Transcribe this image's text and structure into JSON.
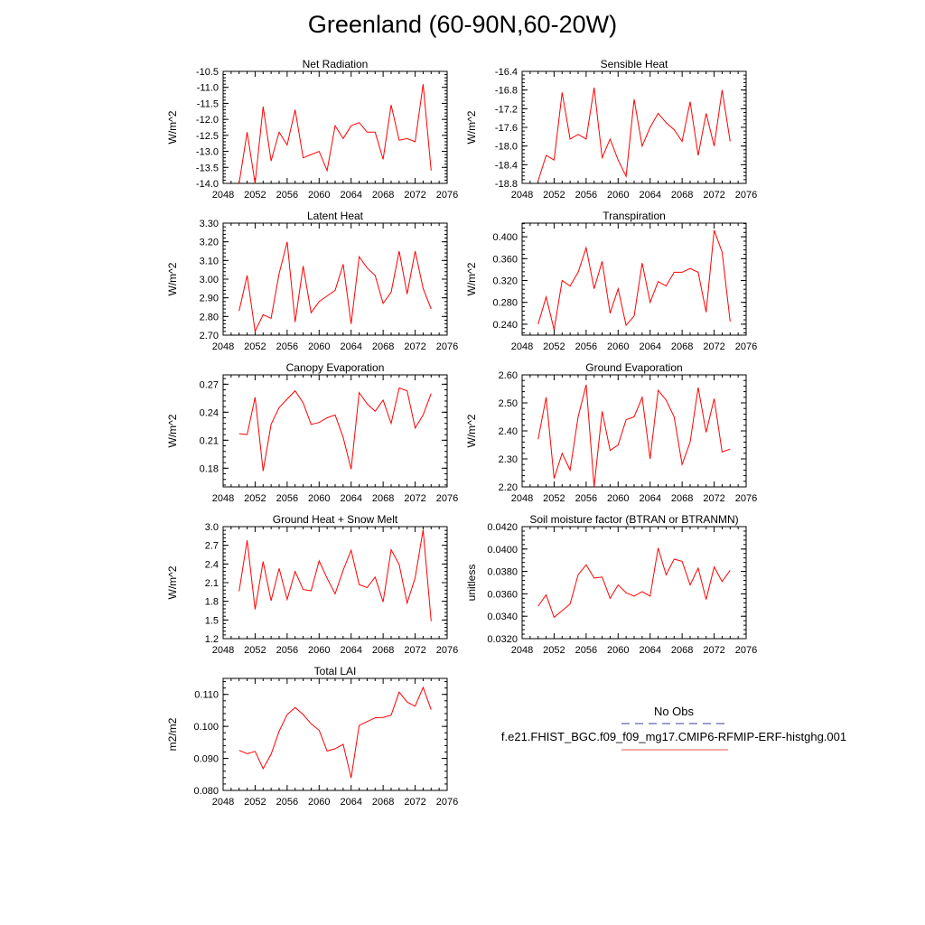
{
  "title": "Greenland (60-90N,60-20W)",
  "legend": {
    "entries": [
      {
        "label": "No Obs",
        "color": "#3b3b9b",
        "style": "dashed"
      },
      {
        "label": "f.e21.FHIST_BGC.f09_f09_mg17.CMIP6-RFMIP-ERF-histghg.001",
        "color": "#e8544e",
        "style": "solid"
      }
    ]
  },
  "chart_data": [
    {
      "type": "line",
      "title": "Net Radiation",
      "ylabel": "W/m^2",
      "xlim": [
        2048,
        2076
      ],
      "xticks": [
        2048,
        2052,
        2056,
        2060,
        2064,
        2068,
        2072,
        2076
      ],
      "ylim": [
        -14.0,
        -10.5
      ],
      "yticks": [
        -14.0,
        -13.5,
        -13.0,
        -12.5,
        -12.0,
        -11.5,
        -11.0,
        -10.5
      ],
      "ytick_labels": [
        "-14.0",
        "-13.5",
        "-13.0",
        "-12.5",
        "-12.0",
        "-11.5",
        "-11.0",
        "-10.5"
      ],
      "series": [
        {
          "color": "#ff0000",
          "x": [
            2050,
            2051,
            2052,
            2053,
            2054,
            2055,
            2056,
            2057,
            2058,
            2059,
            2060,
            2061,
            2062,
            2063,
            2064,
            2065,
            2066,
            2067,
            2068,
            2069,
            2070,
            2071,
            2072,
            2073,
            2074
          ],
          "y": [
            -14.0,
            -12.4,
            -14.0,
            -11.6,
            -13.3,
            -12.4,
            -12.8,
            -11.7,
            -13.2,
            -13.1,
            -13.0,
            -13.6,
            -12.2,
            -12.6,
            -12.2,
            -12.1,
            -12.4,
            -12.4,
            -13.25,
            -11.55,
            -12.65,
            -12.6,
            -12.7,
            -10.9,
            -13.6
          ]
        }
      ]
    },
    {
      "type": "line",
      "title": "Sensible Heat",
      "ylabel": "W/m^2",
      "xlim": [
        2048,
        2076
      ],
      "xticks": [
        2048,
        2052,
        2056,
        2060,
        2064,
        2068,
        2072,
        2076
      ],
      "ylim": [
        -18.8,
        -16.4
      ],
      "yticks": [
        -18.8,
        -18.4,
        -18.0,
        -17.6,
        -17.2,
        -16.8,
        -16.4
      ],
      "ytick_labels": [
        "-18.8",
        "-18.4",
        "-18.0",
        "-17.6",
        "-17.2",
        "-16.8",
        "-16.4"
      ],
      "series": [
        {
          "color": "#ff0000",
          "x": [
            2050,
            2051,
            2052,
            2053,
            2054,
            2055,
            2056,
            2057,
            2058,
            2059,
            2060,
            2061,
            2062,
            2063,
            2064,
            2065,
            2066,
            2067,
            2068,
            2069,
            2070,
            2071,
            2072,
            2073,
            2074
          ],
          "y": [
            -18.75,
            -18.2,
            -18.3,
            -16.85,
            -17.85,
            -17.75,
            -17.85,
            -16.75,
            -18.25,
            -17.85,
            -18.3,
            -18.65,
            -17.0,
            -18.0,
            -17.6,
            -17.3,
            -17.5,
            -17.65,
            -17.9,
            -17.05,
            -18.2,
            -17.3,
            -18.0,
            -16.8,
            -17.9
          ]
        }
      ]
    },
    {
      "type": "line",
      "title": "Latent Heat",
      "ylabel": "W/m^2",
      "xlim": [
        2048,
        2076
      ],
      "xticks": [
        2048,
        2052,
        2056,
        2060,
        2064,
        2068,
        2072,
        2076
      ],
      "ylim": [
        2.7,
        3.3
      ],
      "yticks": [
        2.7,
        2.8,
        2.9,
        3.0,
        3.1,
        3.2,
        3.3
      ],
      "ytick_labels": [
        "2.70",
        "2.80",
        "2.90",
        "3.00",
        "3.10",
        "3.20",
        "3.30"
      ],
      "series": [
        {
          "color": "#ff0000",
          "x": [
            2050,
            2051,
            2052,
            2053,
            2054,
            2055,
            2056,
            2057,
            2058,
            2059,
            2060,
            2061,
            2062,
            2063,
            2064,
            2065,
            2066,
            2067,
            2068,
            2069,
            2070,
            2071,
            2072,
            2073,
            2074
          ],
          "y": [
            2.83,
            3.02,
            2.72,
            2.81,
            2.79,
            3.03,
            3.2,
            2.77,
            3.07,
            2.82,
            2.88,
            2.91,
            2.94,
            3.08,
            2.76,
            3.12,
            3.06,
            3.02,
            2.87,
            2.93,
            3.15,
            2.92,
            3.15,
            2.95,
            2.84
          ]
        }
      ]
    },
    {
      "type": "line",
      "title": "Transpiration",
      "ylabel": "W/m^2",
      "xlim": [
        2048,
        2076
      ],
      "xticks": [
        2048,
        2052,
        2056,
        2060,
        2064,
        2068,
        2072,
        2076
      ],
      "ylim": [
        0.22,
        0.425
      ],
      "yticks": [
        0.24,
        0.28,
        0.32,
        0.36,
        0.4
      ],
      "ytick_labels": [
        "0.240",
        "0.280",
        "0.320",
        "0.360",
        "0.400"
      ],
      "series": [
        {
          "color": "#ff0000",
          "x": [
            2050,
            2051,
            2052,
            2053,
            2054,
            2055,
            2056,
            2057,
            2058,
            2059,
            2060,
            2061,
            2062,
            2063,
            2064,
            2065,
            2066,
            2067,
            2068,
            2069,
            2070,
            2071,
            2072,
            2073,
            2074
          ],
          "y": [
            0.24,
            0.29,
            0.23,
            0.32,
            0.31,
            0.335,
            0.38,
            0.305,
            0.355,
            0.26,
            0.305,
            0.238,
            0.255,
            0.352,
            0.28,
            0.318,
            0.31,
            0.335,
            0.335,
            0.342,
            0.335,
            0.262,
            0.412,
            0.372,
            0.245
          ]
        }
      ]
    },
    {
      "type": "line",
      "title": "Canopy Evaporation",
      "ylabel": "W/m^2",
      "xlim": [
        2048,
        2076
      ],
      "xticks": [
        2048,
        2052,
        2056,
        2060,
        2064,
        2068,
        2072,
        2076
      ],
      "ylim": [
        0.16,
        0.28
      ],
      "yticks": [
        0.18,
        0.21,
        0.24,
        0.27
      ],
      "ytick_labels": [
        "0.18",
        "0.21",
        "0.24",
        "0.27"
      ],
      "series": [
        {
          "color": "#ff0000",
          "x": [
            2050,
            2051,
            2052,
            2053,
            2054,
            2055,
            2056,
            2057,
            2058,
            2059,
            2060,
            2061,
            2062,
            2063,
            2064,
            2065,
            2066,
            2067,
            2068,
            2069,
            2070,
            2071,
            2072,
            2073,
            2074
          ],
          "y": [
            0.217,
            0.216,
            0.256,
            0.177,
            0.227,
            0.245,
            0.254,
            0.263,
            0.25,
            0.227,
            0.229,
            0.234,
            0.237,
            0.213,
            0.179,
            0.261,
            0.249,
            0.241,
            0.253,
            0.228,
            0.266,
            0.263,
            0.223,
            0.237,
            0.26
          ]
        }
      ]
    },
    {
      "type": "line",
      "title": "Ground Evaporation",
      "ylabel": "W/m^2",
      "xlim": [
        2048,
        2076
      ],
      "xticks": [
        2048,
        2052,
        2056,
        2060,
        2064,
        2068,
        2072,
        2076
      ],
      "ylim": [
        2.2,
        2.6
      ],
      "yticks": [
        2.2,
        2.3,
        2.4,
        2.5,
        2.6
      ],
      "ytick_labels": [
        "2.20",
        "2.30",
        "2.40",
        "2.50",
        "2.60"
      ],
      "series": [
        {
          "color": "#ff0000",
          "x": [
            2050,
            2051,
            2052,
            2053,
            2054,
            2055,
            2056,
            2057,
            2058,
            2059,
            2060,
            2061,
            2062,
            2063,
            2064,
            2065,
            2066,
            2067,
            2068,
            2069,
            2070,
            2071,
            2072,
            2073,
            2074
          ],
          "y": [
            2.37,
            2.52,
            2.23,
            2.32,
            2.26,
            2.45,
            2.565,
            2.2,
            2.47,
            2.33,
            2.35,
            2.44,
            2.45,
            2.52,
            2.3,
            2.545,
            2.51,
            2.45,
            2.28,
            2.36,
            2.555,
            2.395,
            2.515,
            2.325,
            2.335
          ]
        }
      ]
    },
    {
      "type": "line",
      "title": "Ground Heat + Snow Melt",
      "ylabel": "W/m^2",
      "xlim": [
        2048,
        2076
      ],
      "xticks": [
        2048,
        2052,
        2056,
        2060,
        2064,
        2068,
        2072,
        2076
      ],
      "ylim": [
        1.2,
        3.0
      ],
      "yticks": [
        1.2,
        1.5,
        1.8,
        2.1,
        2.4,
        2.7,
        3.0
      ],
      "ytick_labels": [
        "1.2",
        "1.5",
        "1.8",
        "2.1",
        "2.4",
        "2.7",
        "3.0"
      ],
      "series": [
        {
          "color": "#ff0000",
          "x": [
            2050,
            2051,
            2052,
            2053,
            2054,
            2055,
            2056,
            2057,
            2058,
            2059,
            2060,
            2061,
            2062,
            2063,
            2064,
            2065,
            2066,
            2067,
            2068,
            2069,
            2070,
            2071,
            2072,
            2073,
            2074
          ],
          "y": [
            1.96,
            2.78,
            1.67,
            2.44,
            1.81,
            2.33,
            1.83,
            2.28,
            1.99,
            1.97,
            2.45,
            2.17,
            1.92,
            2.3,
            2.62,
            2.07,
            2.02,
            2.19,
            1.79,
            2.63,
            2.39,
            1.77,
            2.18,
            2.95,
            1.48
          ]
        }
      ]
    },
    {
      "type": "line",
      "title": "Soil moisture factor (BTRAN or BTRANMN)",
      "ylabel": "unitless",
      "xlim": [
        2048,
        2076
      ],
      "xticks": [
        2048,
        2052,
        2056,
        2060,
        2064,
        2068,
        2072,
        2076
      ],
      "ylim": [
        0.032,
        0.042
      ],
      "yticks": [
        0.032,
        0.034,
        0.036,
        0.038,
        0.04,
        0.042
      ],
      "ytick_labels": [
        "0.0320",
        "0.0340",
        "0.0360",
        "0.0380",
        "0.0400",
        "0.0420"
      ],
      "series": [
        {
          "color": "#ff0000",
          "x": [
            2050,
            2051,
            2052,
            2053,
            2054,
            2055,
            2056,
            2057,
            2058,
            2059,
            2060,
            2061,
            2062,
            2063,
            2064,
            2065,
            2066,
            2067,
            2068,
            2069,
            2070,
            2071,
            2072,
            2073,
            2074
          ],
          "y": [
            0.0349,
            0.0359,
            0.0339,
            0.0345,
            0.0351,
            0.0377,
            0.0386,
            0.0374,
            0.0375,
            0.0356,
            0.0368,
            0.0361,
            0.0358,
            0.0362,
            0.0358,
            0.0401,
            0.0377,
            0.0391,
            0.0389,
            0.0368,
            0.0383,
            0.0355,
            0.0384,
            0.0371,
            0.0381
          ]
        }
      ]
    },
    {
      "type": "line",
      "title": "Total LAI",
      "ylabel": "m2/m2",
      "xlim": [
        2048,
        2076
      ],
      "xticks": [
        2048,
        2052,
        2056,
        2060,
        2064,
        2068,
        2072,
        2076
      ],
      "ylim": [
        0.08,
        0.115
      ],
      "yticks": [
        0.08,
        0.09,
        0.1,
        0.11
      ],
      "ytick_labels": [
        "0.080",
        "0.090",
        "0.100",
        "0.110"
      ],
      "series": [
        {
          "color": "#ff0000",
          "x": [
            2050,
            2051,
            2052,
            2053,
            2054,
            2055,
            2056,
            2057,
            2058,
            2059,
            2060,
            2061,
            2062,
            2063,
            2064,
            2065,
            2066,
            2067,
            2068,
            2069,
            2070,
            2071,
            2072,
            2073,
            2074
          ],
          "y": [
            0.0925,
            0.0915,
            0.0922,
            0.0868,
            0.0913,
            0.0985,
            0.1037,
            0.1059,
            0.1037,
            0.1008,
            0.0988,
            0.0923,
            0.093,
            0.0944,
            0.0839,
            0.1003,
            0.1015,
            0.1027,
            0.1028,
            0.1035,
            0.1107,
            0.1076,
            0.1063,
            0.1122,
            0.1052
          ]
        }
      ]
    }
  ]
}
